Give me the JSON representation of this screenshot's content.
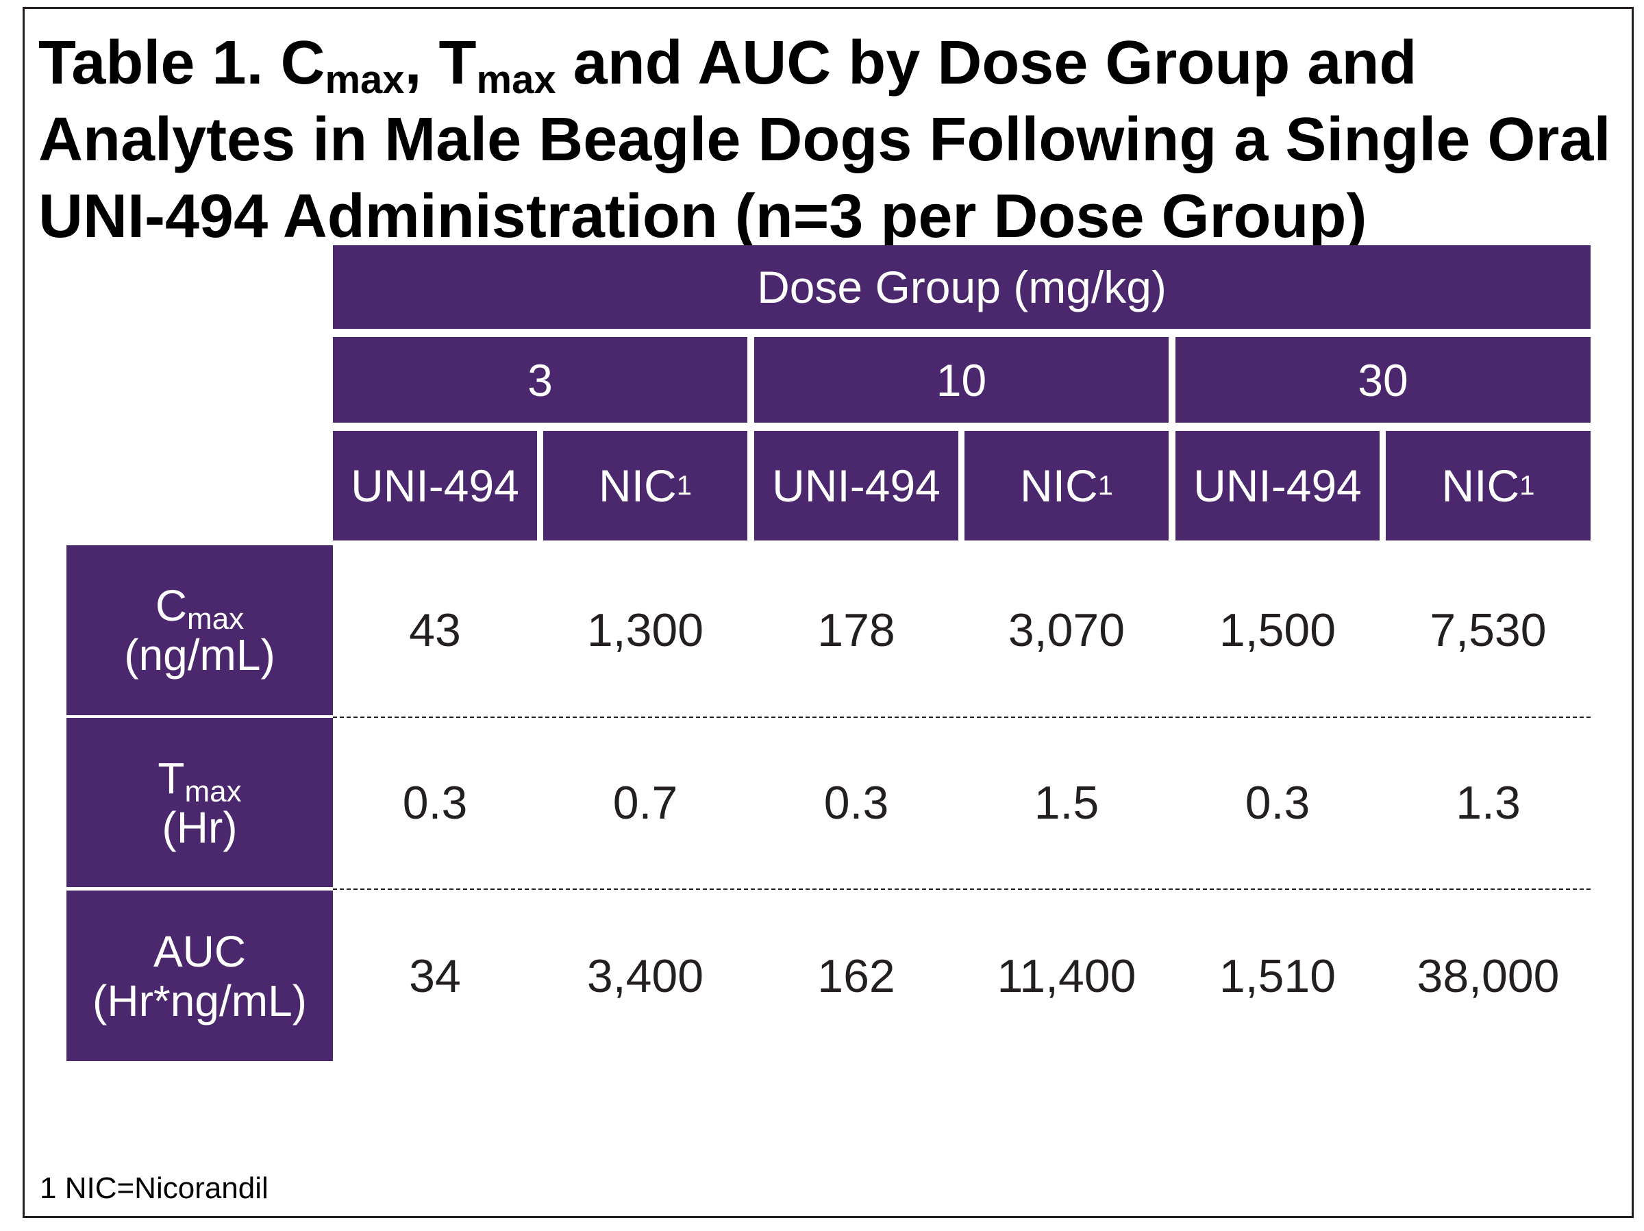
{
  "title": {
    "part1": "Table 1. C",
    "sub1": "max",
    "part2": ", T",
    "sub2": "max",
    "part3": " and AUC by Dose Group and Analytes in Male Beagle Dogs Following a Single Oral UNI-494 Administration (n=3 per Dose Group)"
  },
  "header": {
    "dose_group": "Dose Group (mg/kg)",
    "doses": [
      "3",
      "10",
      "30"
    ],
    "analytes": [
      {
        "name": "UNI-494",
        "sup": ""
      },
      {
        "name": "NIC",
        "sup": "1"
      },
      {
        "name": "UNI-494",
        "sup": ""
      },
      {
        "name": "NIC",
        "sup": "1"
      },
      {
        "name": "UNI-494",
        "sup": ""
      },
      {
        "name": "NIC",
        "sup": "1"
      }
    ]
  },
  "rows": [
    {
      "label_main": "C",
      "label_sub": "max",
      "label_unit": "(ng/mL)",
      "values": [
        "43",
        "1,300",
        "178",
        "3,070",
        "1,500",
        "7,530"
      ]
    },
    {
      "label_main": "T",
      "label_sub": "max",
      "label_unit": "(Hr)",
      "values": [
        "0.3",
        "0.7",
        "0.3",
        "1.5",
        "0.3",
        "1.3"
      ]
    },
    {
      "label_main": "AUC",
      "label_sub": "",
      "label_unit": "(Hr*ng/mL)",
      "values": [
        "34",
        "3,400",
        "162",
        "11,400",
        "1,510",
        "38,000"
      ]
    }
  ],
  "footnote": "1 NIC=Nicorandil",
  "colors": {
    "header_fill": "#4b286d",
    "header_text": "#ffffff",
    "body_text": "#231f20"
  }
}
